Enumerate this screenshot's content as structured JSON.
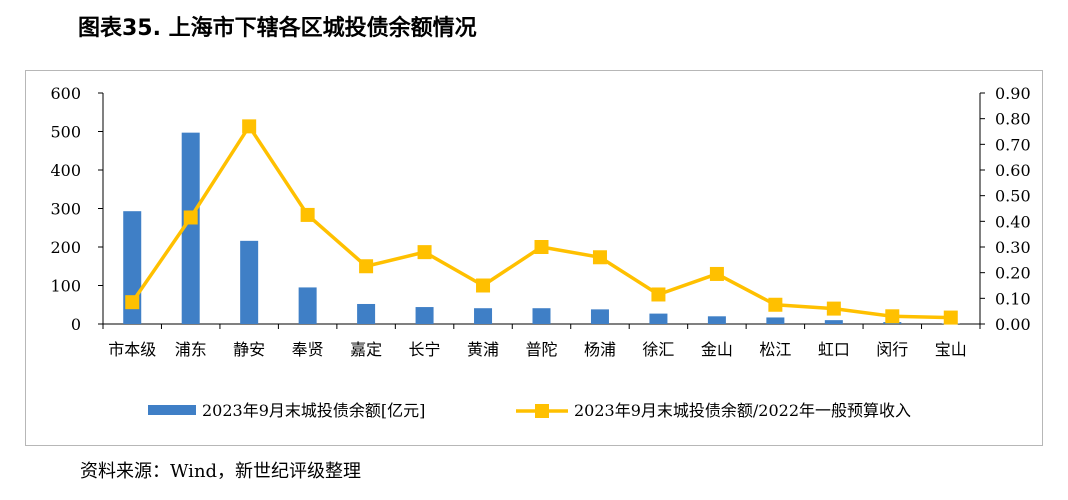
{
  "title": "图表35. 上海市下辖各区城投债余额情况",
  "source": "资料来源：Wind，新世纪评级整理",
  "chart_data": {
    "type": "bar+line",
    "categories": [
      "市本级",
      "浦东",
      "静安",
      "奉贤",
      "嘉定",
      "长宁",
      "黄浦",
      "普陀",
      "杨浦",
      "徐汇",
      "金山",
      "松江",
      "虹口",
      "闵行",
      "宝山"
    ],
    "series": [
      {
        "name": "2023年9月末城投债余额[亿元]",
        "type": "bar",
        "axis": "left",
        "color": "#3f7fc6",
        "values": [
          293,
          497,
          216,
          95,
          52,
          44,
          41,
          41,
          38,
          27,
          20,
          17,
          10,
          5,
          1
        ]
      },
      {
        "name": "2023年9月末城投债余额/2022年一般预算收入",
        "type": "line",
        "axis": "right",
        "color": "#ffc000",
        "values": [
          0.085,
          0.415,
          0.77,
          0.425,
          0.225,
          0.28,
          0.15,
          0.3,
          0.26,
          0.115,
          0.195,
          0.075,
          0.06,
          0.03,
          0.025
        ]
      }
    ],
    "y_left": {
      "min": 0,
      "max": 600,
      "step": 100,
      "ticks": [
        "0",
        "100",
        "200",
        "300",
        "400",
        "500",
        "600"
      ]
    },
    "y_right": {
      "min": 0,
      "max": 0.9,
      "step": 0.1,
      "ticks": [
        "0.00",
        "0.10",
        "0.20",
        "0.30",
        "0.40",
        "0.50",
        "0.60",
        "0.70",
        "0.80",
        "0.90"
      ]
    },
    "grid": false,
    "legend_position": "bottom"
  }
}
